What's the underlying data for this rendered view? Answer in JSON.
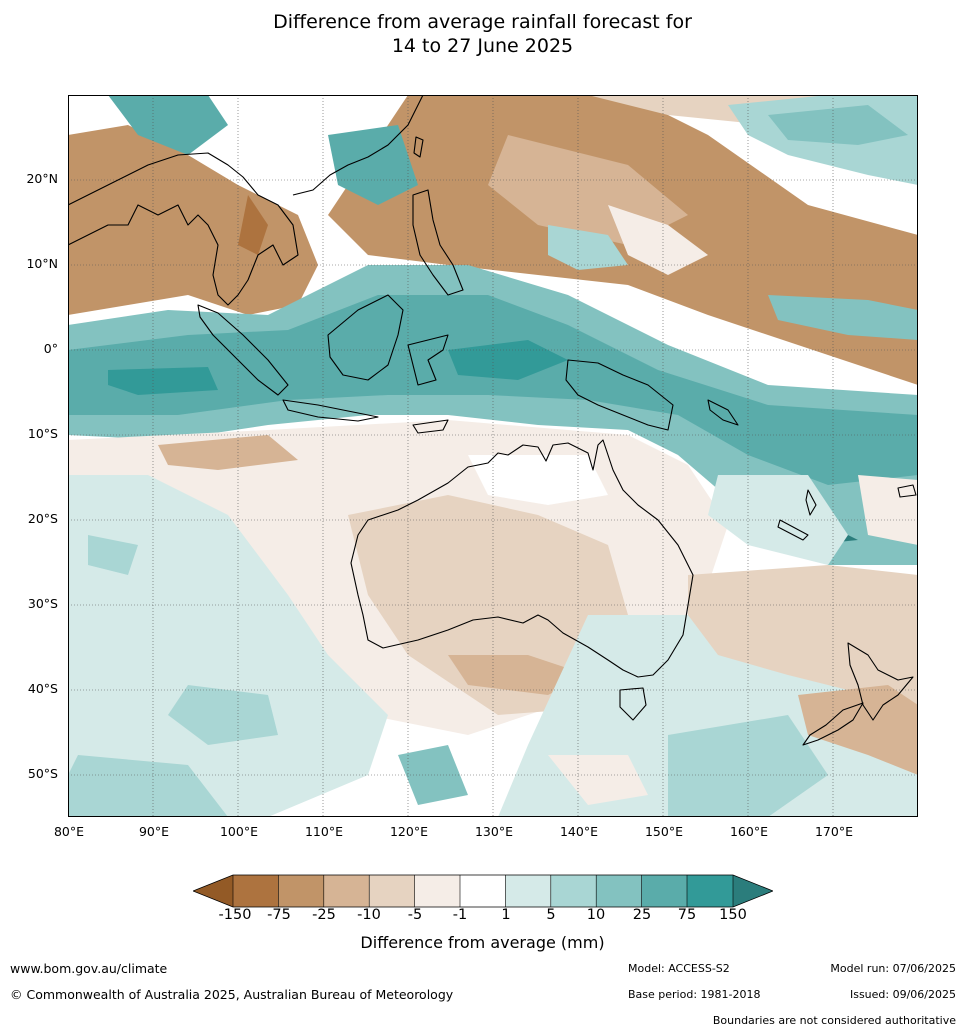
{
  "title": {
    "line1": "Difference from average rainfall forecast for",
    "line2": "14 to 27 June 2025"
  },
  "map": {
    "lat_labels": [
      "20°N",
      "10°N",
      "0°",
      "10°S",
      "20°S",
      "30°S",
      "40°S",
      "50°S"
    ],
    "lon_labels": [
      "80°E",
      "90°E",
      "100°E",
      "110°E",
      "120°E",
      "130°E",
      "140°E",
      "150°E",
      "160°E",
      "170°E"
    ],
    "extent": {
      "lon_min": 80,
      "lon_max": 180,
      "lat_min": -55,
      "lat_max": 30
    }
  },
  "legend": {
    "title": "Difference from average (mm)",
    "tick_labels": [
      "-150",
      "-75",
      "-25",
      "-10",
      "-5",
      "-1",
      "1",
      "5",
      "10",
      "25",
      "75",
      "150"
    ],
    "colors": {
      "lt_-150": "#935a26",
      "-150_-75": "#ad733f",
      "-75_-25": "#c19468",
      "-25_-10": "#d6b495",
      "-10_-5": "#e6d3c1",
      "-5_-1": "#f5ede7",
      "-1_1": "#ffffff",
      "1_5": "#d5eae8",
      "5_10": "#a9d6d4",
      "10_25": "#83c2c0",
      "25_75": "#5aacaa",
      "75_150": "#329a98",
      "gt_150": "#2b7d7c"
    }
  },
  "footer": {
    "url": "www.bom.gov.au/climate",
    "copyright": "© Commonwealth of Australia 2025, Australian Bureau of Meteorology",
    "model": "Model: ACCESS-S2",
    "base_period": "Base period: 1981-2018",
    "model_run": "Model run: 07/06/2025",
    "issued": "Issued: 09/06/2025",
    "boundaries_note": "Boundaries are not considered authoritative"
  }
}
